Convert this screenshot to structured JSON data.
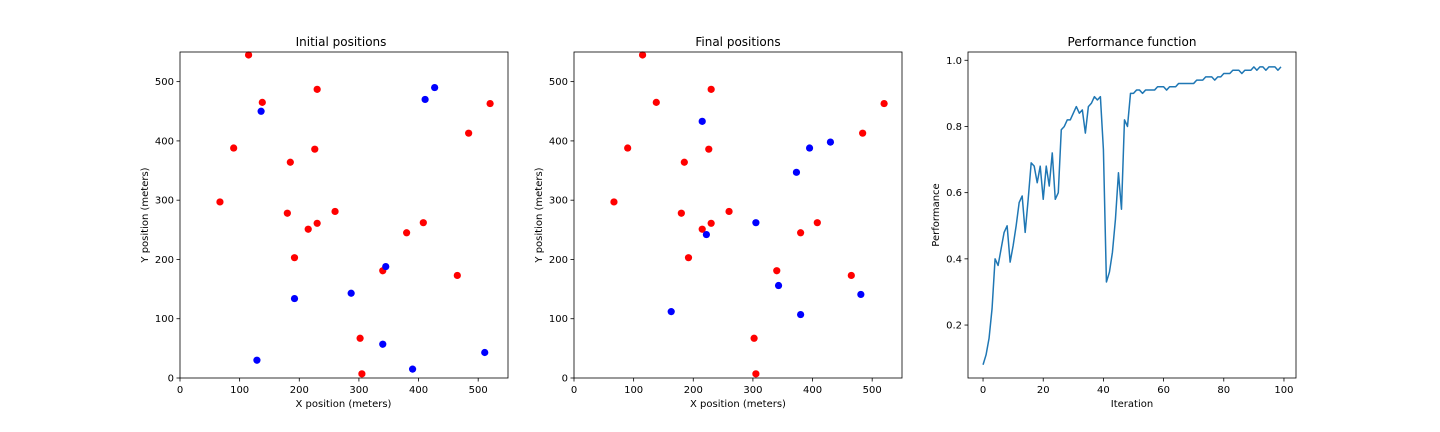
{
  "chart_data": [
    {
      "type": "scatter",
      "title": "Initial positions",
      "xlabel": "X position (meters)",
      "ylabel": "Y position (meters)",
      "xlim": [
        0,
        550
      ],
      "ylim": [
        0,
        550
      ],
      "xticks": [
        0,
        100,
        200,
        300,
        400,
        500
      ],
      "yticks": [
        0,
        100,
        200,
        300,
        400,
        500
      ],
      "grid": false,
      "series": [
        {
          "color": "#ff0000",
          "points": [
            [
              115,
              545
            ],
            [
              138,
              465
            ],
            [
              230,
              487
            ],
            [
              90,
              388
            ],
            [
              226,
              386
            ],
            [
              185,
              364
            ],
            [
              520,
              463
            ],
            [
              484,
              413
            ],
            [
              67,
              297
            ],
            [
              180,
              278
            ],
            [
              230,
              261
            ],
            [
              260,
              281
            ],
            [
              215,
              251
            ],
            [
              192,
              203
            ],
            [
              380,
              245
            ],
            [
              408,
              262
            ],
            [
              465,
              173
            ],
            [
              340,
              181
            ],
            [
              302,
              67
            ],
            [
              305,
              7
            ]
          ]
        },
        {
          "color": "#0000ff",
          "points": [
            [
              136,
              450
            ],
            [
              427,
              490
            ],
            [
              411,
              470
            ],
            [
              345,
              188
            ],
            [
              287,
              143
            ],
            [
              192,
              134
            ],
            [
              129,
              30
            ],
            [
              340,
              57
            ],
            [
              390,
              15
            ],
            [
              511,
              43
            ]
          ]
        }
      ]
    },
    {
      "type": "scatter",
      "title": "Final positions",
      "xlabel": "X position (meters)",
      "ylabel": "Y position (meters)",
      "xlim": [
        0,
        550
      ],
      "ylim": [
        0,
        550
      ],
      "xticks": [
        0,
        100,
        200,
        300,
        400,
        500
      ],
      "yticks": [
        0,
        100,
        200,
        300,
        400,
        500
      ],
      "grid": false,
      "series": [
        {
          "color": "#ff0000",
          "points": [
            [
              115,
              545
            ],
            [
              138,
              465
            ],
            [
              230,
              487
            ],
            [
              90,
              388
            ],
            [
              226,
              386
            ],
            [
              185,
              364
            ],
            [
              520,
              463
            ],
            [
              484,
              413
            ],
            [
              67,
              297
            ],
            [
              180,
              278
            ],
            [
              230,
              261
            ],
            [
              260,
              281
            ],
            [
              215,
              251
            ],
            [
              192,
              203
            ],
            [
              380,
              245
            ],
            [
              408,
              262
            ],
            [
              465,
              173
            ],
            [
              340,
              181
            ],
            [
              302,
              67
            ],
            [
              305,
              7
            ]
          ]
        },
        {
          "color": "#0000ff",
          "points": [
            [
              215,
              433
            ],
            [
              430,
              398
            ],
            [
              395,
              388
            ],
            [
              373,
              347
            ],
            [
              305,
              262
            ],
            [
              222,
              242
            ],
            [
              343,
              156
            ],
            [
              163,
              112
            ],
            [
              380,
              107
            ],
            [
              481,
              141
            ]
          ]
        }
      ]
    },
    {
      "type": "line",
      "title": "Performance function",
      "xlabel": "Iteration",
      "ylabel": "Performance",
      "xlim": [
        -5,
        104
      ],
      "ylim": [
        0.04,
        1.025
      ],
      "xticks": [
        0,
        20,
        40,
        60,
        80,
        100
      ],
      "yticks": [
        0.2,
        0.4,
        0.6,
        0.8,
        1.0
      ],
      "yticklabels": [
        "0.2",
        "0.4",
        "0.6",
        "0.8",
        "1.0"
      ],
      "grid": false,
      "series": [
        {
          "color": "#1f77b4",
          "x": [
            0,
            1,
            2,
            3,
            4,
            5,
            6,
            7,
            8,
            9,
            10,
            11,
            12,
            13,
            14,
            15,
            16,
            17,
            18,
            19,
            20,
            21,
            22,
            23,
            24,
            25,
            26,
            27,
            28,
            29,
            30,
            31,
            32,
            33,
            34,
            35,
            36,
            37,
            38,
            39,
            40,
            41,
            42,
            43,
            44,
            45,
            46,
            47,
            48,
            49,
            50,
            51,
            52,
            53,
            54,
            55,
            56,
            57,
            58,
            59,
            60,
            61,
            62,
            63,
            64,
            65,
            66,
            67,
            68,
            69,
            70,
            71,
            72,
            73,
            74,
            75,
            76,
            77,
            78,
            79,
            80,
            81,
            82,
            83,
            84,
            85,
            86,
            87,
            88,
            89,
            90,
            91,
            92,
            93,
            94,
            95,
            96,
            97,
            98,
            99
          ],
          "y": [
            0.08,
            0.11,
            0.16,
            0.25,
            0.4,
            0.38,
            0.43,
            0.48,
            0.5,
            0.39,
            0.44,
            0.5,
            0.57,
            0.59,
            0.48,
            0.58,
            0.69,
            0.68,
            0.63,
            0.68,
            0.58,
            0.68,
            0.62,
            0.72,
            0.58,
            0.6,
            0.79,
            0.8,
            0.82,
            0.82,
            0.84,
            0.86,
            0.84,
            0.85,
            0.78,
            0.86,
            0.87,
            0.89,
            0.88,
            0.89,
            0.73,
            0.33,
            0.36,
            0.42,
            0.52,
            0.66,
            0.55,
            0.82,
            0.8,
            0.9,
            0.9,
            0.91,
            0.91,
            0.9,
            0.91,
            0.91,
            0.91,
            0.91,
            0.92,
            0.92,
            0.92,
            0.91,
            0.92,
            0.92,
            0.92,
            0.93,
            0.93,
            0.93,
            0.93,
            0.93,
            0.93,
            0.94,
            0.94,
            0.94,
            0.95,
            0.95,
            0.95,
            0.94,
            0.95,
            0.95,
            0.96,
            0.96,
            0.96,
            0.97,
            0.97,
            0.97,
            0.96,
            0.97,
            0.97,
            0.97,
            0.98,
            0.97,
            0.98,
            0.98,
            0.97,
            0.98,
            0.98,
            0.98,
            0.97,
            0.98
          ]
        }
      ]
    }
  ]
}
